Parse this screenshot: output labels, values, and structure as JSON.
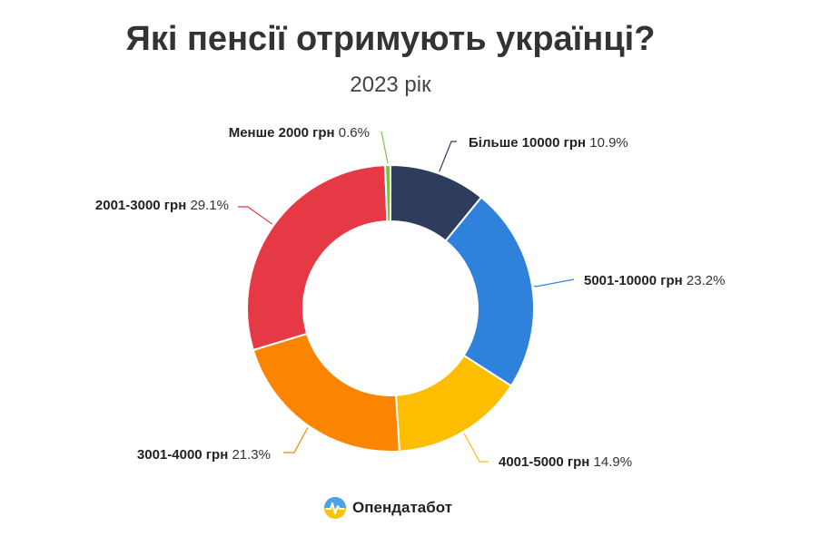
{
  "title": "Які пенсії отримують українці?",
  "subtitle": "2023 рік",
  "brand": {
    "name": "Опендатабот",
    "icon": "opendatabot-logo-icon"
  },
  "chart_data": {
    "type": "pie",
    "donut": true,
    "title": "Які пенсії отримують українці?",
    "subtitle": "2023 рік",
    "unit": "%",
    "start": "top, clockwise",
    "slices": [
      {
        "label": "Більше 10000 грн",
        "value": 10.9,
        "value_label": "10.9%",
        "color": "#2e3d5e"
      },
      {
        "label": "5001-10000 грн",
        "value": 23.2,
        "value_label": "23.2%",
        "color": "#2e82db"
      },
      {
        "label": "4001-5000 грн",
        "value": 14.9,
        "value_label": "14.9%",
        "color": "#fdbd00"
      },
      {
        "label": "3001-4000 грн",
        "value": 21.3,
        "value_label": "21.3%",
        "color": "#fb8500"
      },
      {
        "label": "2001-3000 грн",
        "value": 29.1,
        "value_label": "29.1%",
        "color": "#e63946"
      },
      {
        "label": "Менше 2000 грн",
        "value": 0.6,
        "value_label": "0.6%",
        "color": "#7cc242"
      }
    ]
  }
}
